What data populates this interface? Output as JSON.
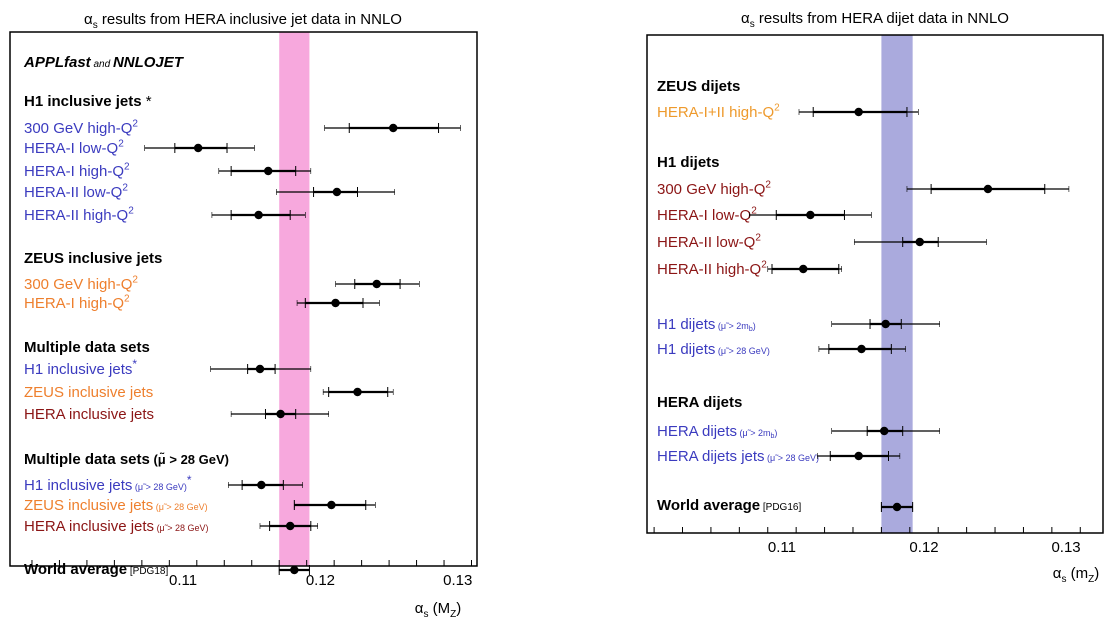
{
  "chart_data": [
    {
      "type": "scatter",
      "title": "αs results from HERA inclusive jet data in NNLO",
      "xlabel": "αs (MZ)",
      "xlim": [
        0.0974,
        0.1314
      ],
      "xticks": [
        0.11,
        0.12,
        0.13
      ],
      "tick_labels": [
        "0.11",
        "0.12",
        "0.13"
      ],
      "band": {
        "center": 0.1181,
        "half_width": 0.0011,
        "color": "#f7a8dd"
      },
      "header": {
        "text": "APPLfast",
        "conj": "and",
        "text2": "NNLOJET"
      },
      "groups": [
        {
          "title": "H1 inclusive jets",
          "title_mark": "*",
          "points": [
            {
              "label": "300 GeV high-Q²",
              "color": "#3b3bbf",
              "value": 0.1253,
              "exp": [
                0.1221,
                0.1286
              ],
              "tot": [
                0.1203,
                0.1302
              ]
            },
            {
              "label": "HERA-I low-Q²",
              "color": "#3b3bbf",
              "value": 0.1111,
              "exp": [
                0.1094,
                0.1132
              ],
              "tot": [
                0.1072,
                0.1152
              ]
            },
            {
              "label": "HERA-I high-Q²",
              "color": "#3b3bbf",
              "value": 0.1162,
              "exp": [
                0.1135,
                0.1182
              ],
              "tot": [
                0.1126,
                0.1193
              ]
            },
            {
              "label": "HERA-II low-Q²",
              "color": "#3b3bbf",
              "value": 0.1212,
              "exp": [
                0.1195,
                0.1227
              ],
              "tot": [
                0.1168,
                0.1254
              ]
            },
            {
              "label": "HERA-II high-Q²",
              "color": "#3b3bbf",
              "value": 0.1155,
              "exp": [
                0.1135,
                0.1178
              ],
              "tot": [
                0.1121,
                0.1189
              ]
            }
          ]
        },
        {
          "title": "ZEUS inclusive jets",
          "points": [
            {
              "label": "300 GeV high-Q²",
              "color": "#ee7f2d",
              "value": 0.1241,
              "exp": [
                0.1225,
                0.1258
              ],
              "tot": [
                0.1211,
                0.1272
              ]
            },
            {
              "label": "HERA-I high-Q²",
              "color": "#ee7f2d",
              "value": 0.1211,
              "exp": [
                0.1189,
                0.1231
              ],
              "tot": [
                0.1183,
                0.1243
              ]
            }
          ]
        },
        {
          "title": "Multiple data sets",
          "points": [
            {
              "label": "H1 inclusive jets",
              "mark": "*",
              "color": "#3b3bbf",
              "value": 0.1156,
              "exp": [
                0.1147,
                0.1167
              ],
              "tot": [
                0.112,
                0.1193
              ]
            },
            {
              "label": "ZEUS inclusive jets",
              "color": "#ee7f2d",
              "value": 0.1227,
              "exp": [
                0.1206,
                0.1249
              ],
              "tot": [
                0.1202,
                0.1253
              ]
            },
            {
              "label": "HERA inclusive jets",
              "color": "#8b1515",
              "value": 0.1171,
              "exp": [
                0.116,
                0.1182
              ],
              "tot": [
                0.1135,
                0.1206
              ]
            }
          ]
        },
        {
          "title": "Multiple data sets",
          "title_sub": "(μ̃ > 28 GeV)",
          "points": [
            {
              "label": "H1 inclusive jets",
              "sub": "(μ̃ > 28 GeV)",
              "mark": "*",
              "color": "#3b3bbf",
              "value": 0.1157,
              "exp": [
                0.1143,
                0.1173
              ],
              "tot": [
                0.1133,
                0.1187
              ]
            },
            {
              "label": "ZEUS inclusive jets",
              "sub": "(μ̃ > 28 GeV)",
              "color": "#ee7f2d",
              "value": 0.1208,
              "exp": [
                0.1181,
                0.1233
              ],
              "tot": [
                0.1181,
                0.124
              ]
            },
            {
              "label": "HERA inclusive jets",
              "sub": "(μ̃ > 28 GeV)",
              "color": "#8b1515",
              "value": 0.1178,
              "exp": [
                0.1163,
                0.1193
              ],
              "tot": [
                0.1156,
                0.1198
              ]
            }
          ]
        },
        {
          "title": "World average",
          "title_sub": "[PDG18]",
          "title_color": "#000000",
          "points": [
            {
              "label": "",
              "color": "#000000",
              "value": 0.1181,
              "exp": [
                0.117,
                0.1192
              ],
              "tot": [
                0.117,
                0.1192
              ]
            }
          ]
        }
      ]
    },
    {
      "type": "scatter",
      "title": "αs results from HERA dijet data in NNLO",
      "xlabel": "αs (mZ)",
      "xlim": [
        0.1005,
        0.1326
      ],
      "xticks": [
        0.11,
        0.12,
        0.13
      ],
      "tick_labels": [
        "0.11",
        "0.12",
        "0.13"
      ],
      "band": {
        "center": 0.1181,
        "half_width": 0.0011,
        "color": "#aaaadd"
      },
      "groups": [
        {
          "title": "ZEUS dijets",
          "points": [
            {
              "label": "HERA-I+II high-Q²",
              "color": "#ee9a2d",
              "value": 0.1154,
              "exp": [
                0.1122,
                0.1188
              ],
              "tot": [
                0.1112,
                0.1196
              ]
            }
          ]
        },
        {
          "title": "H1 dijets",
          "points": [
            {
              "label": "300 GeV high-Q²",
              "color": "#8b1515",
              "value": 0.1245,
              "exp": [
                0.1205,
                0.1285
              ],
              "tot": [
                0.1188,
                0.1302
              ]
            },
            {
              "label": "HERA-I  low-Q²",
              "color": "#8b1515",
              "value": 0.112,
              "exp": [
                0.1096,
                0.1144
              ],
              "tot": [
                0.1077,
                0.1163
              ]
            },
            {
              "label": "HERA-II low-Q²",
              "color": "#8b1515",
              "value": 0.1197,
              "exp": [
                0.1185,
                0.121
              ],
              "tot": [
                0.1151,
                0.1244
              ]
            },
            {
              "label": "HERA-II high-Q²",
              "color": "#8b1515",
              "value": 0.1115,
              "exp": [
                0.1093,
                0.114
              ],
              "tot": [
                0.109,
                0.1142
              ]
            }
          ]
        },
        {
          "title": "",
          "points": [
            {
              "label": "H1 dijets",
              "sub": "(μ̃ > 2mb)",
              "color": "#3b3bbf",
              "value": 0.1173,
              "exp": [
                0.1162,
                0.1184
              ],
              "tot": [
                0.1135,
                0.1211
              ]
            },
            {
              "label": "H1 dijets",
              "sub": "(μ̃ > 28 GeV)",
              "color": "#3b3bbf",
              "value": 0.1156,
              "exp": [
                0.1133,
                0.1177
              ],
              "tot": [
                0.1126,
                0.1187
              ]
            }
          ]
        },
        {
          "title": "HERA dijets",
          "points": [
            {
              "label": "HERA dijets",
              "sub": "(μ̃ > 2mb)",
              "color": "#3b3bbf",
              "value": 0.1172,
              "exp": [
                0.116,
                0.1185
              ],
              "tot": [
                0.1135,
                0.1211
              ]
            },
            {
              "label": "HERA dijets jets",
              "sub": "(μ̃ > 28 GeV)",
              "color": "#3b3bbf",
              "value": 0.1154,
              "exp": [
                0.1134,
                0.1175
              ],
              "tot": [
                0.1125,
                0.1183
              ]
            }
          ]
        },
        {
          "title": "World average",
          "title_sub": "[PDG16]",
          "points": [
            {
              "label": "",
              "color": "#000000",
              "value": 0.1181,
              "exp": [
                0.117,
                0.1192
              ],
              "tot": [
                0.117,
                0.1192
              ]
            }
          ]
        }
      ]
    }
  ]
}
